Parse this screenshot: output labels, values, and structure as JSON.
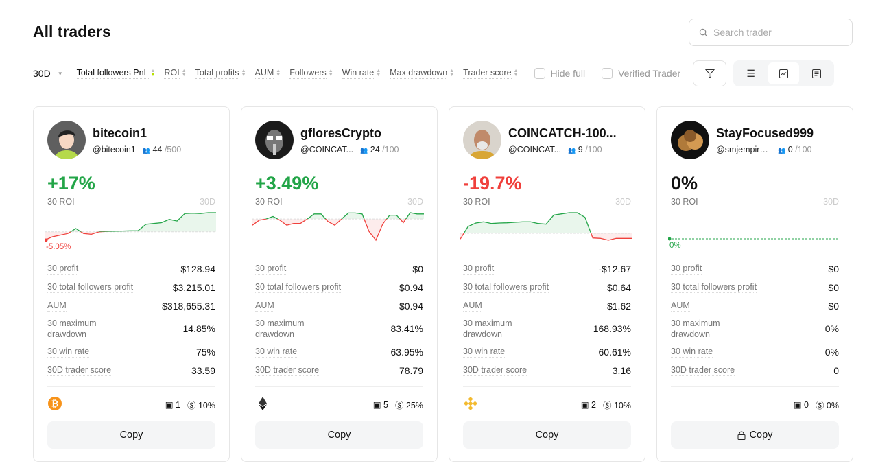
{
  "page": {
    "title": "All traders",
    "search_placeholder": "Search trader"
  },
  "filters": {
    "period": "30D",
    "sorts": [
      "Total followers PnL",
      "ROI",
      "Total profits",
      "AUM",
      "Followers",
      "Win rate",
      "Max drawdown",
      "Trader score"
    ],
    "hide_full": "Hide full",
    "verified": "Verified Trader"
  },
  "colors": {
    "positive": "#23a548",
    "negative": "#f0403c"
  },
  "labels": {
    "roi": "30 ROI",
    "period": "30D",
    "profit": "30 profit",
    "followers_profit": "30 total followers profit",
    "aum": "AUM",
    "mdd": "30 maximum drawdown",
    "win": "30 win rate",
    "score": "30D trader score",
    "copy": "Copy"
  },
  "traders": [
    {
      "name": "bitecoin1",
      "handle": "@bitecoin1",
      "followers": "44",
      "max": "/500",
      "roi": "+17%",
      "trend": "pos",
      "min_label": "-5.05%",
      "spark": [
        -5.05,
        -3,
        -2,
        -1,
        2,
        -1,
        -1.5,
        0,
        0.3,
        0.4,
        0.5,
        0.6,
        0.7,
        4.5,
        5,
        5.5,
        7.5,
        6.5,
        11,
        11.2,
        11,
        11.5,
        11.5
      ],
      "profit": "$128.94",
      "followers_profit": "$3,215.01",
      "aum": "$318,655.31",
      "mdd": "14.85%",
      "win": "75%",
      "score": "33.59",
      "coin": "bitcoin",
      "orders": "1",
      "share": "10%",
      "locked": false
    },
    {
      "name": "gfloresCrypto",
      "handle": "@COINCAT...",
      "followers": "24",
      "max": "/100",
      "roi": "+3.49%",
      "trend": "pos",
      "min_label": "",
      "spark": [
        -2.5,
        -0.5,
        0,
        1,
        -0.5,
        -2.5,
        -1.8,
        -1.8,
        0,
        2,
        2,
        -1,
        -2.5,
        0,
        2.4,
        2.4,
        2,
        -5,
        -8.5,
        -2,
        1.5,
        1.5,
        -1.5,
        2.5,
        2,
        2
      ],
      "profit": "$0",
      "followers_profit": "$0.94",
      "aum": "$0.94",
      "mdd": "83.41%",
      "win": "63.95%",
      "score": "78.79",
      "coin": "ethereum",
      "orders": "5",
      "share": "25%",
      "locked": false
    },
    {
      "name": "COINCATCH-100...",
      "handle": "@COINCAT...",
      "followers": "9",
      "max": "/100",
      "roi": "-19.7%",
      "trend": "neg",
      "min_label": "",
      "spark": [
        -2.5,
        3,
        4.5,
        5,
        4.3,
        4.5,
        4.6,
        4.8,
        5,
        5,
        4.3,
        4,
        8,
        8.5,
        9,
        9,
        7,
        -2,
        -2.2,
        -3,
        -2.2,
        -2.2,
        -2.2
      ],
      "profit": "-$12.67",
      "followers_profit": "$0.64",
      "aum": "$1.62",
      "mdd": "168.93%",
      "win": "60.61%",
      "score": "3.16",
      "coin": "bnb",
      "orders": "2",
      "share": "10%",
      "locked": false
    },
    {
      "name": "StayFocused999",
      "handle": "@smjempire...",
      "followers": "0",
      "max": "/100",
      "roi": "0%",
      "trend": "zero",
      "min_label": "0%",
      "spark": [
        0,
        0,
        0,
        0,
        0
      ],
      "profit": "$0",
      "followers_profit": "$0",
      "aum": "$0",
      "mdd": "0%",
      "win": "0%",
      "score": "0",
      "coin": "",
      "orders": "0",
      "share": "0%",
      "locked": true
    }
  ]
}
